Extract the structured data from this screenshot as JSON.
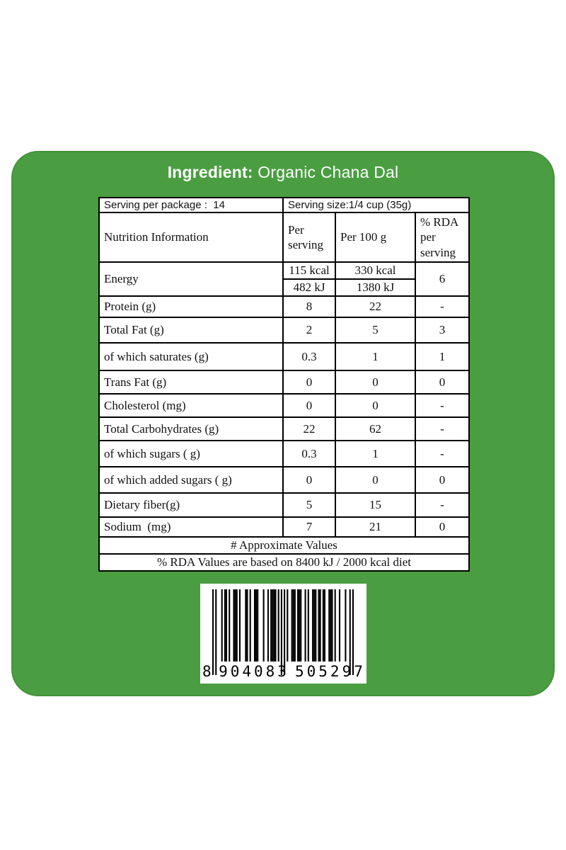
{
  "colors": {
    "card_green": "#4a9e41",
    "table_border": "#000000",
    "text": "#111111",
    "title_text": "#ffffff"
  },
  "card": {
    "title_label": "Ingredient:",
    "title_value": " Organic Chana Dal"
  },
  "table": {
    "serving_per_package": "Serving per package :  14",
    "serving_size": "Serving size:1/4 cup (35g)",
    "header": {
      "info": "Nutrition Information",
      "per_serving": "Per serving",
      "per_100g": "Per 100 g",
      "rda": "% RDA per serving"
    },
    "energy": {
      "label": "Energy",
      "per_serving_kcal": "115 kcal",
      "per_serving_kj": "482 kJ",
      "per_100g_kcal": "330 kcal",
      "per_100g_kj": "1380 kJ",
      "rda": "6"
    },
    "rows": [
      {
        "label": "Protein (g)",
        "per_serving": "8",
        "per_100g": "22",
        "rda": "-"
      },
      {
        "label": "Total Fat (g)",
        "per_serving": "2",
        "per_100g": "5",
        "rda": "3"
      },
      {
        "label": "of which saturates (g)",
        "per_serving": "0.3",
        "per_100g": "1",
        "rda": "1"
      },
      {
        "label": "Trans Fat (g)",
        "per_serving": "0",
        "per_100g": "0",
        "rda": "0"
      },
      {
        "label": "Cholesterol (mg)",
        "per_serving": "0",
        "per_100g": "0",
        "rda": "-"
      },
      {
        "label": "Total Carbohydrates (g)",
        "per_serving": "22",
        "per_100g": "62",
        "rda": "-"
      },
      {
        "label": "of which sugars ( g)",
        "per_serving": "0.3",
        "per_100g": "1",
        "rda": "-"
      },
      {
        "label": "of which added sugars ( g)",
        "per_serving": "0",
        "per_100g": "0",
        "rda": "0"
      },
      {
        "label": "Dietary fiber(g)",
        "per_serving": "5",
        "per_100g": "15",
        "rda": "-"
      },
      {
        "label": "Sodium  (mg)",
        "per_serving": "7",
        "per_100g": "21",
        "rda": "0"
      }
    ],
    "footnote_approx": "# Approximate Values",
    "footnote_rda": "% RDA Values are based on 8400 kJ / 2000 kcal diet"
  },
  "barcode": {
    "full_number": "8904083505297",
    "lead_digit": "8",
    "group1": "904083",
    "group2": "505297",
    "pattern": "10100010110100111010001101001110001001011110101010100111011100101001110110110011101001000100101"
  }
}
